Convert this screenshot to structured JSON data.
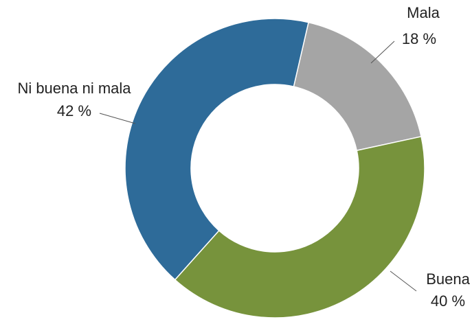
{
  "chart_data": {
    "type": "donut",
    "categories": [
      "Mala",
      "Buena",
      "Ni buena ni mala"
    ],
    "values": [
      18,
      40,
      42
    ],
    "value_labels": [
      "18 %",
      "40 %",
      "42 %"
    ],
    "colors": [
      "#a5a5a5",
      "#77933c",
      "#2e6b99"
    ]
  }
}
